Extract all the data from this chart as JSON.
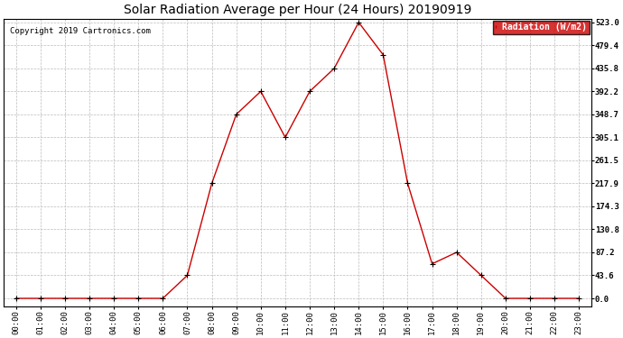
{
  "title": "Solar Radiation Average per Hour (24 Hours) 20190919",
  "copyright": "Copyright 2019 Cartronics.com",
  "hours": [
    "00:00",
    "01:00",
    "02:00",
    "03:00",
    "04:00",
    "05:00",
    "06:00",
    "07:00",
    "08:00",
    "09:00",
    "10:00",
    "11:00",
    "12:00",
    "13:00",
    "14:00",
    "15:00",
    "16:00",
    "17:00",
    "18:00",
    "19:00",
    "20:00",
    "21:00",
    "22:00",
    "23:00"
  ],
  "values": [
    0.0,
    0.0,
    0.0,
    0.0,
    0.0,
    0.0,
    0.0,
    43.6,
    217.9,
    348.7,
    392.2,
    305.1,
    392.2,
    435.8,
    523.0,
    461.6,
    217.9,
    65.4,
    87.2,
    43.6,
    0.0,
    0.0,
    0.0,
    0.0
  ],
  "yticks": [
    0.0,
    43.6,
    87.2,
    130.8,
    174.3,
    217.9,
    261.5,
    305.1,
    348.7,
    392.2,
    435.8,
    479.4,
    523.0
  ],
  "line_color": "#cc0000",
  "marker_color": "#000000",
  "background_color": "#ffffff",
  "grid_color": "#bbbbbb",
  "legend_bg": "#cc0000",
  "legend_text_color": "#ffffff",
  "title_fontsize": 10,
  "copyright_fontsize": 6.5,
  "tick_fontsize": 6.5,
  "legend_fontsize": 7,
  "ylim_min": -15,
  "ylim_max": 530
}
